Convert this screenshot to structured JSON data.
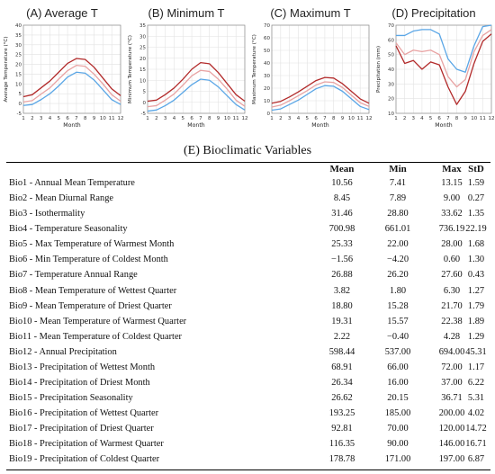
{
  "chart_data": [
    {
      "type": "line",
      "title": "(A) Average T",
      "xlabel": "Month",
      "ylabel": "Average Temperature (°C)",
      "x": [
        1,
        2,
        3,
        4,
        5,
        6,
        7,
        8,
        9,
        10,
        11,
        12
      ],
      "ylim": [
        -5,
        40
      ],
      "yticks": [
        -5,
        0,
        5,
        10,
        15,
        20,
        25,
        30,
        35,
        40
      ],
      "series_colors": [
        "#b22a2a",
        "#e8a3a3",
        "#5aa6e6"
      ],
      "series": [
        {
          "values": [
            3.5,
            4.5,
            8.0,
            11.5,
            16.0,
            20.5,
            23.0,
            22.5,
            18.5,
            13.0,
            7.5,
            4.0
          ]
        },
        {
          "values": [
            0.8,
            1.5,
            4.8,
            8.0,
            12.5,
            16.8,
            19.5,
            19.0,
            15.0,
            10.0,
            4.5,
            1.2
          ]
        },
        {
          "values": [
            -1.0,
            -0.5,
            2.0,
            5.0,
            9.0,
            13.5,
            16.0,
            15.5,
            12.0,
            7.0,
            2.0,
            -0.5
          ]
        }
      ]
    },
    {
      "type": "line",
      "title": "(B) Minimum T",
      "xlabel": "Month",
      "ylabel": "Minimum Temperature (°C)",
      "x": [
        1,
        2,
        3,
        4,
        5,
        6,
        7,
        8,
        9,
        10,
        11,
        12
      ],
      "ylim": [
        -5,
        35
      ],
      "yticks": [
        -5,
        0,
        5,
        10,
        15,
        20,
        25,
        30,
        35
      ],
      "series_colors": [
        "#b22a2a",
        "#e8a3a3",
        "#5aa6e6"
      ],
      "series": [
        {
          "values": [
            0.5,
            1.0,
            3.5,
            6.5,
            10.5,
            15.0,
            18.0,
            17.5,
            13.5,
            8.5,
            3.5,
            0.5
          ]
        },
        {
          "values": [
            -2.0,
            -1.5,
            1.0,
            3.8,
            7.8,
            12.0,
            14.5,
            14.0,
            10.5,
            6.0,
            1.0,
            -1.8
          ]
        },
        {
          "values": [
            -4.0,
            -3.5,
            -1.5,
            1.0,
            4.5,
            8.0,
            10.5,
            10.0,
            7.0,
            3.0,
            -1.0,
            -3.5
          ]
        }
      ]
    },
    {
      "type": "line",
      "title": "(C) Maximum T",
      "xlabel": "Month",
      "ylabel": "Maximum Temperature (°C)",
      "x": [
        1,
        2,
        3,
        4,
        5,
        6,
        7,
        8,
        9,
        10,
        11,
        12
      ],
      "ylim": [
        0,
        70
      ],
      "yticks": [
        0,
        10,
        20,
        30,
        40,
        50,
        60,
        70
      ],
      "series_colors": [
        "#b22a2a",
        "#e8a3a3",
        "#5aa6e6"
      ],
      "series": [
        {
          "values": [
            8.0,
            9.5,
            13.0,
            17.0,
            21.5,
            26.0,
            28.5,
            28.0,
            23.5,
            17.5,
            11.5,
            8.0
          ]
        },
        {
          "values": [
            5.0,
            6.5,
            10.0,
            14.0,
            18.0,
            22.5,
            25.0,
            24.5,
            20.5,
            14.5,
            8.5,
            5.5
          ]
        },
        {
          "values": [
            2.5,
            3.5,
            7.0,
            10.5,
            15.0,
            19.5,
            22.0,
            21.5,
            17.5,
            11.5,
            5.5,
            3.0
          ]
        }
      ]
    },
    {
      "type": "line",
      "title": "(D) Precipitation",
      "xlabel": "Month",
      "ylabel": "Precipitation (mm)",
      "x": [
        1,
        2,
        3,
        4,
        5,
        6,
        7,
        8,
        9,
        10,
        11,
        12
      ],
      "ylim": [
        10,
        70
      ],
      "yticks": [
        10,
        20,
        30,
        40,
        50,
        60,
        70
      ],
      "series_colors": [
        "#b22a2a",
        "#e8a3a3",
        "#5aa6e6"
      ],
      "series": [
        {
          "values": [
            56,
            44,
            46,
            40,
            45,
            43,
            28,
            16,
            25,
            44,
            59,
            64
          ]
        },
        {
          "values": [
            58,
            50,
            53,
            52,
            53,
            50,
            35,
            28,
            33,
            52,
            63,
            67
          ]
        },
        {
          "values": [
            63,
            63,
            66,
            67,
            67,
            64,
            47,
            40,
            38,
            56,
            69,
            70
          ]
        }
      ]
    }
  ],
  "table": {
    "title": "(E) Bioclimatic Variables",
    "headers": {
      "mean": "Mean",
      "min": "Min",
      "max": "Max",
      "std": "StD"
    },
    "rows": [
      {
        "var": "Bio1 - Annual Mean Temperature",
        "mean": "10.56",
        "min": "7.41",
        "max": "13.15",
        "std": "1.59"
      },
      {
        "var": "Bio2 - Mean Diurnal Range",
        "mean": "8.45",
        "min": "7.89",
        "max": "9.00",
        "std": "0.27"
      },
      {
        "var": "Bio3 - Isothermality",
        "mean": "31.46",
        "min": "28.80",
        "max": "33.62",
        "std": "1.35"
      },
      {
        "var": "Bio4 - Temperature Seasonality",
        "mean": "700.98",
        "min": "661.01",
        "max": "736.19",
        "std": "22.19"
      },
      {
        "var": "Bio5 - Max Temperature of Warmest Month",
        "mean": "25.33",
        "min": "22.00",
        "max": "28.00",
        "std": "1.68"
      },
      {
        "var": "Bio6 - Min Temperature of Coldest Month",
        "mean": "−1.56",
        "min": "−4.20",
        "max": "0.60",
        "std": "1.30"
      },
      {
        "var": "Bio7 - Temperature Annual Range",
        "mean": "26.88",
        "min": "26.20",
        "max": "27.60",
        "std": "0.43"
      },
      {
        "var": "Bio8 - Mean Temperature of Wettest Quarter",
        "mean": "3.82",
        "min": "1.80",
        "max": "6.30",
        "std": "1.27"
      },
      {
        "var": "Bio9 - Mean Temperature of Driest Quarter",
        "mean": "18.80",
        "min": "15.28",
        "max": "21.70",
        "std": "1.79"
      },
      {
        "var": "Bio10 - Mean Temperature of Warmest Quarter",
        "mean": "19.31",
        "min": "15.57",
        "max": "22.38",
        "std": "1.89"
      },
      {
        "var": "Bio11 - Mean Temperature of Coldest Quarter",
        "mean": "2.22",
        "min": "−0.40",
        "max": "4.28",
        "std": "1.29"
      },
      {
        "var": "Bio12 - Annual Precipitation",
        "mean": "598.44",
        "min": "537.00",
        "max": "694.00",
        "std": "45.31"
      },
      {
        "var": "Bio13 - Precipitation of Wettest Month",
        "mean": "68.91",
        "min": "66.00",
        "max": "72.00",
        "std": "1.17"
      },
      {
        "var": "Bio14 - Precipitation of Driest Month",
        "mean": "26.34",
        "min": "16.00",
        "max": "37.00",
        "std": "6.22"
      },
      {
        "var": "Bio15 - Precipitation Seasonality",
        "mean": "26.62",
        "min": "20.15",
        "max": "36.71",
        "std": "5.31"
      },
      {
        "var": "Bio16 - Precipitation of Wettest Quarter",
        "mean": "193.25",
        "min": "185.00",
        "max": "200.00",
        "std": "4.02"
      },
      {
        "var": "Bio17 - Precipitation of Driest Quarter",
        "mean": "92.81",
        "min": "70.00",
        "max": "120.00",
        "std": "14.72"
      },
      {
        "var": "Bio18 - Precipitation of Warmest Quarter",
        "mean": "116.35",
        "min": "90.00",
        "max": "146.00",
        "std": "16.71"
      },
      {
        "var": "Bio19 - Precipitation of Coldest Quarter",
        "mean": "178.78",
        "min": "171.00",
        "max": "197.00",
        "std": "6.87"
      }
    ]
  }
}
